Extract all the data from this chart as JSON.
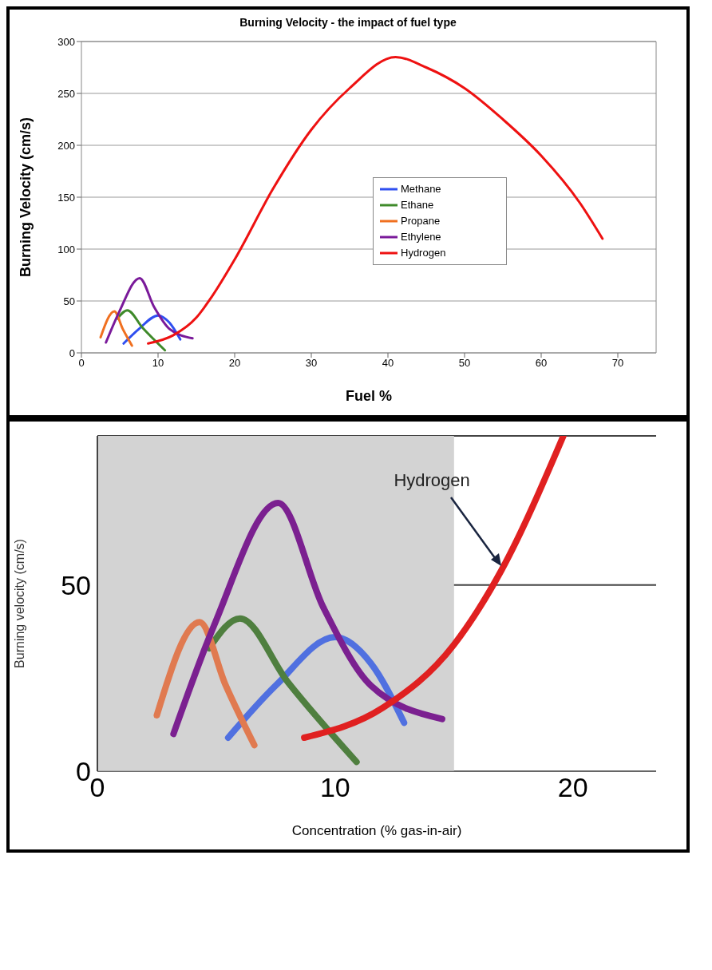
{
  "chart_data": [
    {
      "type": "line",
      "title": "Burning Velocity - the impact of fuel type",
      "xlabel": "Fuel %",
      "ylabel": "Burning Velocity (cm/s)",
      "xlim": [
        0,
        75
      ],
      "xticks": [
        0,
        10,
        20,
        30,
        40,
        50,
        60,
        70
      ],
      "ylim": [
        0,
        300
      ],
      "yticks": [
        0,
        50,
        100,
        150,
        200,
        250,
        300
      ],
      "grid": "y",
      "legend": "center",
      "marker": "none",
      "line_style": "solid",
      "series": [
        {
          "name": "Methane",
          "color": "#2f4ff0",
          "x": [
            5.5,
            7.5,
            10,
            11.5,
            12.9
          ],
          "values": [
            9,
            23,
            36,
            29,
            13
          ]
        },
        {
          "name": "Ethane",
          "color": "#3f8a2a",
          "x": [
            4.7,
            6,
            8,
            10.9
          ],
          "values": [
            33,
            41,
            24,
            2.5
          ]
        },
        {
          "name": "Propane",
          "color": "#f07020",
          "x": [
            2.5,
            4.3,
            5.4,
            6.6
          ],
          "values": [
            15,
            40,
            23,
            7
          ]
        },
        {
          "name": "Ethylene",
          "color": "#7a1a9a",
          "x": [
            3.2,
            4.9,
            7.6,
            9.5,
            11.5,
            14.5
          ],
          "values": [
            10,
            39,
            72,
            44,
            23,
            14
          ]
        },
        {
          "name": "Hydrogen",
          "color": "#ee1111",
          "x": [
            8.7,
            12,
            15,
            17,
            20,
            25,
            30,
            35,
            41,
            45,
            50,
            55,
            60,
            65,
            68
          ],
          "values": [
            9,
            17,
            34,
            54,
            90,
            158,
            215,
            255,
            285,
            275,
            255,
            225,
            190,
            145,
            110
          ]
        }
      ]
    },
    {
      "type": "line",
      "xlabel": "Concentration (% gas-in-air)",
      "ylabel": "Burning velocity (cm/s)",
      "xlim": [
        0,
        23.5
      ],
      "xticks": [
        0,
        10,
        20
      ],
      "ylim": [
        0,
        90
      ],
      "yticks": [
        0,
        50
      ],
      "grid": "y",
      "marker": "none",
      "line_style": "solid",
      "bands": [
        {
          "axis": "x",
          "from": 0,
          "to": 15,
          "color": "#d3d3d3"
        }
      ],
      "annotations": [
        {
          "text": "Hydrogen",
          "x": 17,
          "y": 55
        }
      ],
      "series": [
        {
          "color": "#5070e0",
          "x": [
            5.5,
            7.5,
            10,
            11.5,
            12.9
          ],
          "values": [
            9,
            23,
            36,
            29,
            13
          ]
        },
        {
          "color": "#4f7f3f",
          "x": [
            4.7,
            6,
            8,
            10.9
          ],
          "values": [
            33,
            41,
            24,
            2.5
          ]
        },
        {
          "color": "#e07a50",
          "x": [
            2.5,
            4.3,
            5.4,
            6.6
          ],
          "values": [
            15,
            40,
            23,
            7
          ]
        },
        {
          "color": "#7b2090",
          "x": [
            3.2,
            4.9,
            7.6,
            9.5,
            11.5,
            14.5
          ],
          "values": [
            10,
            39,
            72,
            44,
            23,
            14
          ]
        },
        {
          "color": "#e02020",
          "x": [
            8.7,
            12,
            15,
            17,
            19.6
          ],
          "values": [
            9,
            17,
            34,
            54,
            90
          ]
        }
      ]
    }
  ]
}
